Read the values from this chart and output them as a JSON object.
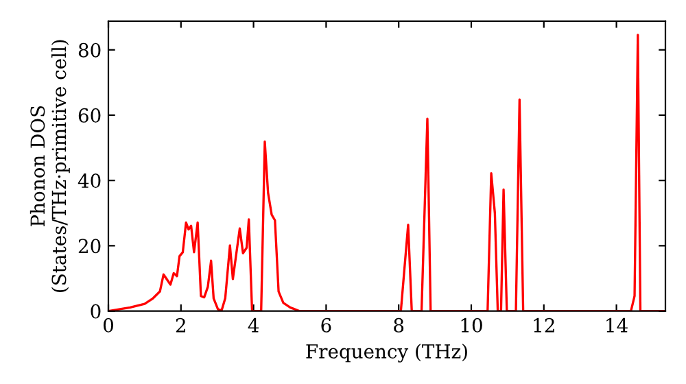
{
  "chart_data": {
    "type": "line",
    "xlabel": "Frequency (THz)",
    "ylabel": "Phonon DOS\n(States/THz·primitive cell)",
    "xlim": [
      0,
      15.35
    ],
    "ylim": [
      0,
      88.8
    ],
    "xticks": [
      0,
      2,
      4,
      6,
      8,
      10,
      12,
      14
    ],
    "yticks": [
      0,
      20,
      40,
      60,
      80
    ],
    "grid": false,
    "legend": false,
    "marker": "none",
    "line_style": "solid",
    "series": [
      {
        "color": "#ff0000",
        "x": [
          0,
          0.6,
          1.0,
          1.23,
          1.42,
          1.52,
          1.71,
          1.8,
          1.89,
          1.96,
          2.05,
          2.14,
          2.21,
          2.28,
          2.36,
          2.46,
          2.55,
          2.64,
          2.74,
          2.83,
          2.9,
          3.02,
          3.12,
          3.22,
          3.35,
          3.43,
          3.62,
          3.71,
          3.81,
          3.87,
          3.96,
          4.21,
          4.31,
          4.4,
          4.5,
          4.59,
          4.69,
          4.82,
          5.01,
          5.26,
          8.06,
          8.26,
          8.36,
          8.63,
          8.79,
          8.88,
          10.45,
          10.55,
          10.65,
          10.73,
          10.82,
          10.89,
          10.98,
          11.23,
          11.33,
          11.43,
          14.4,
          14.5,
          14.59,
          14.66,
          15.35
        ],
        "values": [
          0,
          1.1,
          2.2,
          3.9,
          6.0,
          11.2,
          8.1,
          11.6,
          10.7,
          16.8,
          18.0,
          27.1,
          25.0,
          26.1,
          18.0,
          27.1,
          4.6,
          4.2,
          7.4,
          15.4,
          3.9,
          0.5,
          0.2,
          3.9,
          20.1,
          9.8,
          25.3,
          17.7,
          19.4,
          28.1,
          0,
          0,
          51.9,
          36.2,
          29.5,
          27.8,
          6.0,
          2.5,
          1.1,
          0,
          0,
          26.4,
          0,
          0,
          58.9,
          0,
          0,
          42.2,
          30,
          0,
          0,
          37.2,
          0,
          0,
          64.8,
          0,
          0,
          4.6,
          84.6,
          0,
          0
        ]
      }
    ]
  }
}
